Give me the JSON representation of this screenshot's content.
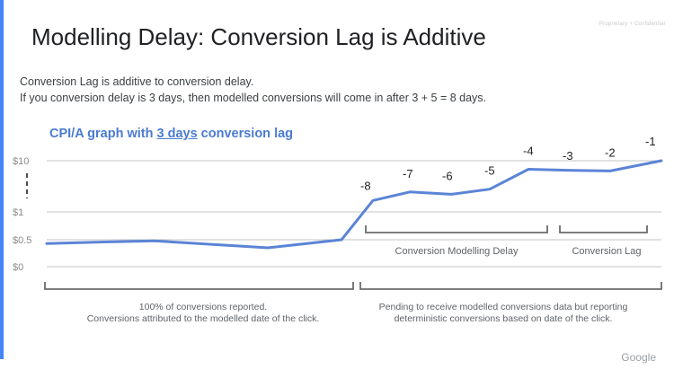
{
  "slide": {
    "title": "Modelling Delay: Conversion Lag is Additive",
    "confidential": "Proprietary + Confidential",
    "intro_line1": "Conversion Lag is additive to conversion delay.",
    "intro_line2": "If you conversion delay is 3 days, then modelled conversions will come in after 3 + 5 = 8 days.",
    "graph_title_pre": "CPI/A graph with ",
    "graph_title_u": "3 days",
    "graph_title_post": " conversion lag",
    "logo": "Google"
  },
  "colors": {
    "line": "#5b84d6",
    "title_accent": "#4a7bd0",
    "grid": "#c6c6c6",
    "bracket": "#6b6b6b",
    "accent_bar": "#4285f4"
  },
  "chart_data": {
    "type": "line",
    "title": "CPI/A graph with 3 days conversion lag",
    "y_tick_labels": [
      "$10",
      "$1",
      "$0.5",
      "$0"
    ],
    "y_scale": "non-linear (broken axis between $1 and $10)",
    "grid": true,
    "series": [
      {
        "points": [
          {
            "cpa": 0.43
          },
          {
            "cpa": 0.46
          },
          {
            "cpa": 0.48
          },
          {
            "cpa": 0.35
          },
          {
            "cpa": 0.5
          },
          {
            "cpa": 3.0,
            "label": "-8"
          },
          {
            "cpa": 4.5,
            "label": "-7"
          },
          {
            "cpa": 4.1,
            "label": "-6"
          },
          {
            "cpa": 5.0,
            "label": "-5"
          },
          {
            "cpa": 8.5,
            "label": "-4"
          },
          {
            "cpa": 8.3,
            "label": "-3"
          },
          {
            "cpa": 8.2,
            "label": "-2"
          },
          {
            "cpa": 10.0,
            "label": "-1"
          }
        ]
      }
    ],
    "annotations": [
      {
        "text": "Conversion Modelling Delay",
        "range_labels": [
          "-8",
          "-4"
        ]
      },
      {
        "text": "Conversion Lag",
        "range_labels": [
          "-3",
          "-1"
        ]
      },
      {
        "line1": "100% of conversions reported.",
        "line2": "Conversions attributed to the modelled date of the click."
      },
      {
        "line1": "Pending to receive modelled conversions data but reporting",
        "line2": "deterministic conversions based on date of the click."
      }
    ]
  }
}
